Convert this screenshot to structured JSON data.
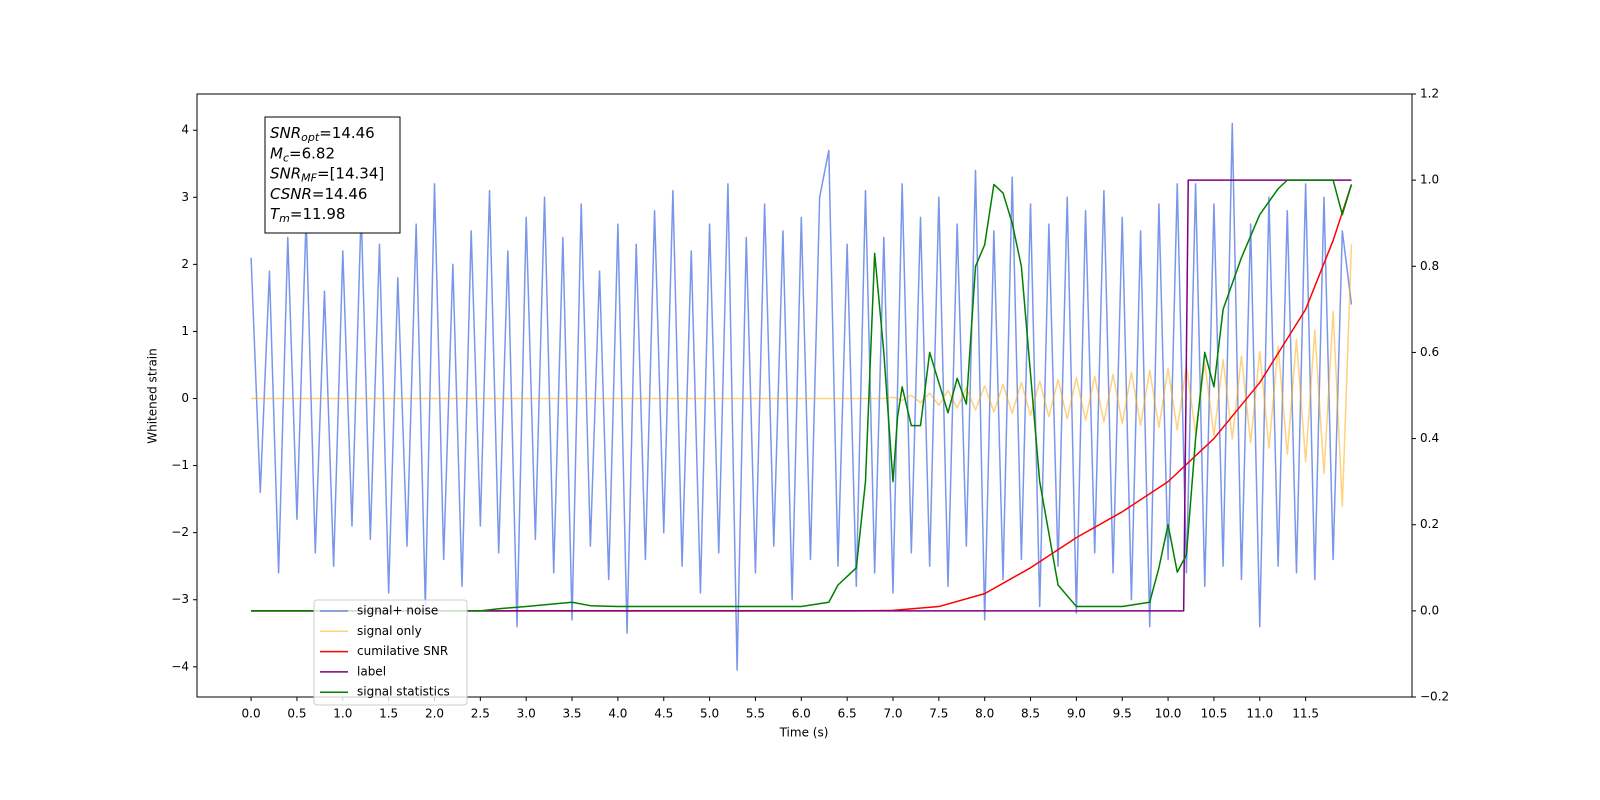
{
  "chart_data": {
    "type": "line",
    "xlabel": "Time (s)",
    "ylabel": "Whitened strain",
    "xlim": [
      -0.59,
      12.66
    ],
    "ylim": [
      -4.45,
      4.54
    ],
    "y2lim": [
      -0.2,
      1.2
    ],
    "xticks": [
      {
        "value": 0,
        "label": "0.0"
      },
      {
        "value": 0.5,
        "label": "0.5"
      },
      {
        "value": 1,
        "label": "1.0"
      },
      {
        "value": 1.5,
        "label": "1.5"
      },
      {
        "value": 2,
        "label": "2.0"
      },
      {
        "value": 2.5,
        "label": "2.5"
      },
      {
        "value": 3,
        "label": "3.0"
      },
      {
        "value": 3.5,
        "label": "3.5"
      },
      {
        "value": 4,
        "label": "4.0"
      },
      {
        "value": 4.5,
        "label": "4.5"
      },
      {
        "value": 5,
        "label": "5.0"
      },
      {
        "value": 5.5,
        "label": "5.5"
      },
      {
        "value": 6,
        "label": "6.0"
      },
      {
        "value": 6.5,
        "label": "6.5"
      },
      {
        "value": 7,
        "label": "7.0"
      },
      {
        "value": 7.5,
        "label": "7.5"
      },
      {
        "value": 8,
        "label": "8.0"
      },
      {
        "value": 8.5,
        "label": "8.5"
      },
      {
        "value": 9,
        "label": "9.0"
      },
      {
        "value": 9.5,
        "label": "9.5"
      },
      {
        "value": 10,
        "label": "10.0"
      },
      {
        "value": 10.5,
        "label": "10.5"
      },
      {
        "value": 11,
        "label": "11.0"
      },
      {
        "value": 11.5,
        "label": "11.5"
      }
    ],
    "yticks": [
      {
        "value": -4,
        "label": "−4"
      },
      {
        "value": -3,
        "label": "−3"
      },
      {
        "value": -2,
        "label": "−2"
      },
      {
        "value": -1,
        "label": "−1"
      },
      0,
      1,
      2,
      3,
      4
    ],
    "y2ticks": [
      {
        "value": -0.2,
        "label": "−0.2"
      },
      {
        "value": 0,
        "label": "0.0"
      },
      {
        "value": 0.2,
        "label": "0.2"
      },
      {
        "value": 0.4,
        "label": "0.4"
      },
      {
        "value": 0.6,
        "label": "0.6"
      },
      {
        "value": 0.8,
        "label": "0.8"
      },
      {
        "value": 1,
        "label": "1.0"
      },
      {
        "value": 1.2,
        "label": "1.2"
      }
    ],
    "legend": "lower left",
    "annotations": [
      {
        "name": "SNR",
        "sub": "opt",
        "text": "=14.46"
      },
      {
        "name": "M",
        "sub": "c",
        "text": "=6.82"
      },
      {
        "name": "SNR",
        "sub": "MF",
        "text": "=[14.34]"
      },
      {
        "name": "CSNR",
        "text": "=14.46"
      },
      {
        "name": "T",
        "sub": "m",
        "text": "=11.98"
      }
    ],
    "x": [
      0,
      0.1,
      0.2,
      0.3,
      0.4,
      0.5,
      0.6,
      0.7,
      0.8,
      0.9,
      1,
      1.1,
      1.2,
      1.3,
      1.4,
      1.5,
      1.6,
      1.7,
      1.8,
      1.9,
      2,
      2.1,
      2.2,
      2.3,
      2.4,
      2.5,
      2.6,
      2.7,
      2.8,
      2.9,
      3,
      3.1,
      3.2,
      3.3,
      3.4,
      3.5,
      3.6,
      3.7,
      3.8,
      3.9,
      4,
      4.1,
      4.2,
      4.3,
      4.4,
      4.5,
      4.6,
      4.7,
      4.8,
      4.9,
      5,
      5.1,
      5.2,
      5.3,
      5.4,
      5.5,
      5.6,
      5.7,
      5.8,
      5.9,
      6,
      6.1,
      6.2,
      6.3,
      6.4,
      6.5,
      6.6,
      6.7,
      6.8,
      6.9,
      7,
      7.1,
      7.2,
      7.3,
      7.4,
      7.5,
      7.6,
      7.7,
      7.8,
      7.9,
      8,
      8.1,
      8.2,
      8.3,
      8.4,
      8.5,
      8.6,
      8.7,
      8.8,
      8.9,
      9,
      9.1,
      9.2,
      9.3,
      9.4,
      9.5,
      9.6,
      9.7,
      9.8,
      9.9,
      10,
      10.1,
      10.2,
      10.3,
      10.4,
      10.5,
      10.6,
      10.7,
      10.8,
      10.9,
      11,
      11.1,
      11.2,
      11.3,
      11.4,
      11.5,
      11.6,
      11.7,
      11.8,
      11.9,
      12
    ],
    "series": [
      {
        "name": "signal+ noise",
        "color": "#4169e1",
        "alpha": 0.7,
        "axis": "y",
        "values": [
          2.1,
          -1.4,
          1.9,
          -2.6,
          2.4,
          -1.8,
          2.7,
          -2.3,
          1.6,
          -2.5,
          2.2,
          -1.9,
          2.8,
          -2.1,
          2.3,
          -2.9,
          1.8,
          -2.2,
          2.6,
          -3.1,
          3.2,
          -2.4,
          2.0,
          -2.8,
          2.5,
          -1.9,
          3.1,
          -2.3,
          2.2,
          -3.4,
          2.7,
          -2.1,
          3.0,
          -2.6,
          2.4,
          -3.3,
          2.9,
          -2.2,
          1.9,
          -2.7,
          2.6,
          -3.5,
          2.3,
          -2.4,
          2.8,
          -2.0,
          3.1,
          -2.5,
          2.2,
          -2.9,
          2.6,
          -2.3,
          3.2,
          -4.05,
          2.4,
          -2.6,
          2.9,
          -2.2,
          2.5,
          -3.0,
          2.7,
          -2.4,
          3.0,
          3.7,
          -2.5,
          2.3,
          -2.8,
          3.1,
          -2.6,
          2.4,
          -2.9,
          3.2,
          -2.3,
          2.7,
          -2.5,
          3.0,
          -2.8,
          2.6,
          -2.2,
          3.4,
          -3.3,
          2.5,
          -2.7,
          3.3,
          -2.4,
          2.9,
          -3.1,
          2.6,
          -2.5,
          3.0,
          -3.2,
          2.8,
          -2.3,
          3.1,
          -2.6,
          2.7,
          -3.0,
          2.5,
          -3.4,
          2.9,
          -2.4,
          3.2,
          -2.6,
          3.2,
          -2.8,
          2.9,
          -2.5,
          4.1,
          -2.7,
          2.6,
          -3.4,
          3.0,
          -2.5,
          2.8,
          -2.6,
          3.2,
          -2.7,
          3.0,
          -2.4,
          2.5,
          1.4
        ]
      },
      {
        "name": "signal only",
        "color": "#ffa500",
        "alpha": 0.5,
        "axis": "y",
        "values": [
          0,
          0,
          0,
          0,
          0,
          0,
          0,
          0,
          0,
          0,
          0,
          0,
          0,
          0,
          0,
          0,
          0,
          0,
          0,
          0,
          0,
          0,
          0,
          0,
          0,
          0,
          0,
          0,
          0,
          0,
          0,
          0,
          0,
          0,
          0,
          0,
          0,
          0,
          0,
          0,
          0,
          0,
          0,
          0,
          0,
          0,
          0,
          0,
          0,
          0,
          0,
          0,
          0,
          0,
          0,
          0,
          0,
          0,
          0,
          0,
          0,
          0,
          0,
          0,
          0,
          0,
          0,
          0,
          0,
          0,
          0.02,
          -0.03,
          0.05,
          -0.06,
          0.08,
          -0.1,
          0.12,
          -0.14,
          0.16,
          -0.17,
          0.19,
          -0.2,
          0.21,
          -0.22,
          0.24,
          -0.25,
          0.26,
          -0.27,
          0.28,
          -0.3,
          0.31,
          -0.32,
          0.33,
          -0.35,
          0.36,
          -0.37,
          0.39,
          -0.4,
          0.42,
          -0.43,
          0.45,
          -0.47,
          0.49,
          -0.51,
          0.53,
          -0.55,
          0.58,
          -0.6,
          0.63,
          -0.66,
          0.7,
          -0.74,
          0.78,
          -0.83,
          0.88,
          -0.94,
          1.02,
          -1.12,
          1.3,
          -1.6,
          2.3
        ]
      },
      {
        "name": "cumilative SNR",
        "color": "#ff0000",
        "alpha": 1,
        "axis": "y2",
        "x": [
          0,
          6.5,
          7.0,
          7.5,
          8.0,
          8.5,
          9.0,
          9.5,
          10.0,
          10.5,
          11.0,
          11.5,
          11.8,
          12.0
        ],
        "values": [
          0,
          0,
          0.001,
          0.01,
          0.04,
          0.1,
          0.17,
          0.23,
          0.3,
          0.4,
          0.53,
          0.7,
          0.86,
          0.99
        ]
      },
      {
        "name": "label",
        "color": "#800080",
        "alpha": 1,
        "axis": "y2",
        "x": [
          0,
          10.17,
          10.22,
          12.0
        ],
        "values": [
          0,
          0,
          1,
          1
        ]
      },
      {
        "name": "signal statistics",
        "color": "#008000",
        "alpha": 1,
        "axis": "y2",
        "x": [
          0,
          2.5,
          2.7,
          3.0,
          3.5,
          3.7,
          4.0,
          5.0,
          6.0,
          6.3,
          6.4,
          6.5,
          6.6,
          6.7,
          6.8,
          6.9,
          7.0,
          7.05,
          7.1,
          7.2,
          7.3,
          7.4,
          7.5,
          7.6,
          7.7,
          7.8,
          7.9,
          8.0,
          8.1,
          8.2,
          8.3,
          8.4,
          8.6,
          8.8,
          9.0,
          9.5,
          9.8,
          9.9,
          10.0,
          10.1,
          10.2,
          10.3,
          10.4,
          10.5,
          10.6,
          10.7,
          10.8,
          11.0,
          11.2,
          11.3,
          11.5,
          11.8,
          11.9,
          12.0
        ],
        "values": [
          0,
          0,
          0.005,
          0.01,
          0.02,
          0.012,
          0.01,
          0.01,
          0.01,
          0.02,
          0.06,
          0.08,
          0.1,
          0.3,
          0.83,
          0.6,
          0.3,
          0.45,
          0.52,
          0.43,
          0.43,
          0.6,
          0.53,
          0.46,
          0.54,
          0.48,
          0.8,
          0.85,
          0.99,
          0.97,
          0.9,
          0.8,
          0.3,
          0.06,
          0.01,
          0.01,
          0.02,
          0.1,
          0.2,
          0.09,
          0.13,
          0.4,
          0.6,
          0.52,
          0.7,
          0.76,
          0.82,
          0.92,
          0.98,
          1.0,
          1.0,
          1.0,
          0.92,
          0.99
        ]
      }
    ]
  }
}
